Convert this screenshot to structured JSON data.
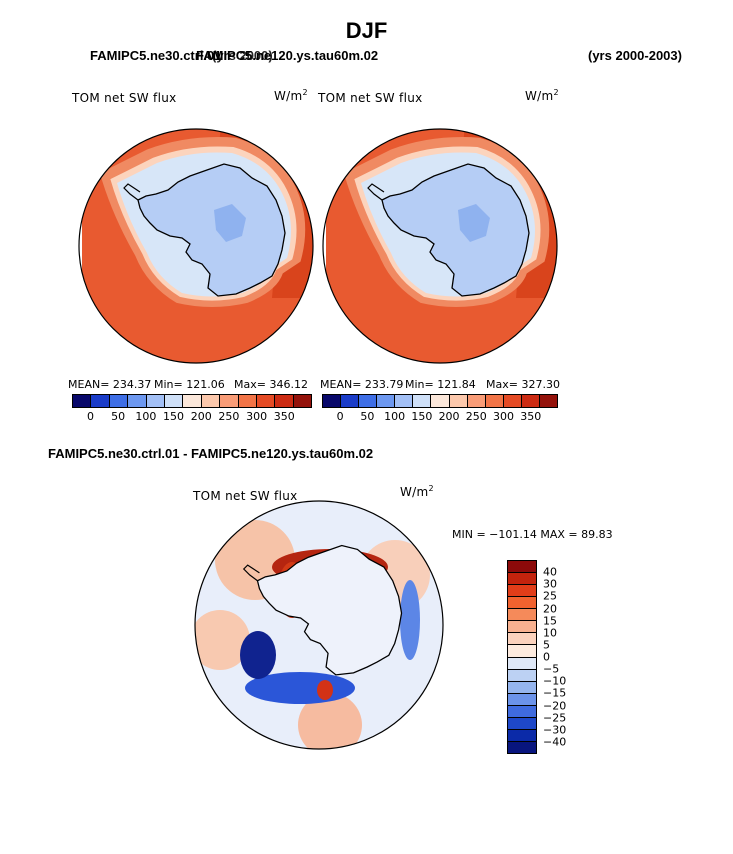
{
  "title": "DJF",
  "header": {
    "left_label": "FAMIPC5.ne30.ctrl.01",
    "overlap_label": "FAMIPC5.ne120.ys.tau60m.02",
    "overlap_suffix": "(yrs 2000)",
    "right_label": "(yrs 2000-2003)"
  },
  "panels": [
    {
      "var_label": "TOM net SW flux",
      "units": "W/m",
      "units_exp": "2",
      "mean_label": "MEAN= 234.37",
      "min_label": "Min= 121.06",
      "max_label": "Max= 346.12"
    },
    {
      "var_label": "TOM net SW flux",
      "units": "W/m",
      "units_exp": "2",
      "mean_label": "MEAN= 233.79",
      "min_label": "Min= 121.84",
      "max_label": "Max= 327.30"
    }
  ],
  "colorbar": {
    "colors": [
      "#08086b",
      "#1a3cc8",
      "#3e6ee6",
      "#6d98f0",
      "#a3c0f6",
      "#cfe0f8",
      "#fbe7da",
      "#fcc8ac",
      "#f99c77",
      "#f27447",
      "#e54b25",
      "#cc2b13",
      "#94120b"
    ],
    "ticks": [
      "0",
      "50",
      "100",
      "150",
      "200",
      "250",
      "300",
      "350"
    ]
  },
  "diff": {
    "title": "FAMIPC5.ne30.ctrl.01 - FAMIPC5.ne120.ys.tau60m.02",
    "var_label": "TOM net SW flux",
    "units": "W/m",
    "units_exp": "2",
    "minmax_label": "MIN = −101.14 MAX =  89.83",
    "levels": [
      "40",
      "30",
      "25",
      "20",
      "15",
      "10",
      "5",
      "0",
      "−5",
      "−10",
      "−15",
      "−20",
      "−25",
      "−30",
      "−40"
    ],
    "colors": [
      "#8c0a0a",
      "#c3230d",
      "#e13d19",
      "#f1622f",
      "#f58a5a",
      "#f8b190",
      "#fbd2bd",
      "#fdebdf",
      "#dfe8f7",
      "#bcd1f3",
      "#95b5ee",
      "#6b93ea",
      "#3f6bdf",
      "#1e48c9",
      "#0b2aa8",
      "#08157e"
    ]
  },
  "map_colors": {
    "ocean_base": "#e85a30",
    "ocean_strong": "#d9441c",
    "ocean_band": "#f08a62",
    "ice_edge": "#fcd4bd",
    "sea_ice": "#d7e6f8",
    "land": "#b5cdf5",
    "plateau": "#8fb2ef",
    "coast": "#000000",
    "diff_base": "#e8eefa"
  }
}
